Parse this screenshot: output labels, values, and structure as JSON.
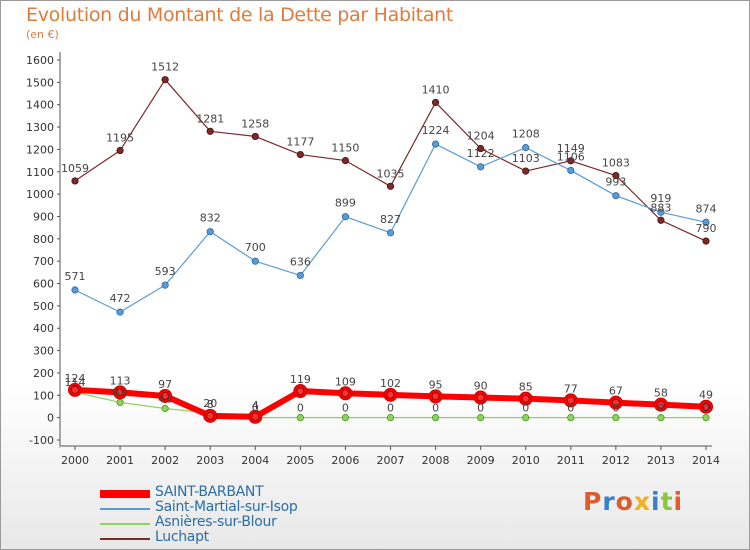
{
  "title": "Evolution du Montant de la Dette par Habitant",
  "subtitle": "(en €)",
  "logo": {
    "text": "Proxiti",
    "colors": [
      "#e05a2a",
      "#3a7fcc",
      "#e05a2a",
      "#f0b020",
      "#3a7fcc",
      "#8cc63f",
      "#e05a2a"
    ]
  },
  "chart_data": {
    "type": "line",
    "x": [
      2000,
      2001,
      2002,
      2003,
      2004,
      2005,
      2006,
      2007,
      2008,
      2009,
      2010,
      2011,
      2012,
      2013,
      2014
    ],
    "ylim": [
      -100,
      1600
    ],
    "yticks": [
      -100,
      0,
      100,
      200,
      300,
      400,
      500,
      600,
      700,
      800,
      900,
      1000,
      1100,
      1200,
      1300,
      1400,
      1500,
      1600
    ],
    "grid": false,
    "legend_position": "bottom",
    "series": [
      {
        "name": "SAINT-BARBANT",
        "color": "#ff0000",
        "values": [
          124,
          113,
          97,
          8,
          4,
          119,
          109,
          102,
          95,
          90,
          85,
          77,
          67,
          58,
          49
        ],
        "labels": [
          "124",
          "113",
          "97",
          "8",
          "4",
          "119",
          "109",
          "102",
          "95",
          "90",
          "85",
          "77",
          "67",
          "58",
          "49"
        ]
      },
      {
        "name": "Saint-Martial-sur-Isop",
        "color": "#5b9bd5",
        "values": [
          571,
          472,
          593,
          832,
          700,
          636,
          899,
          827,
          1224,
          1122,
          1208,
          1106,
          993,
          919,
          874
        ],
        "labels": [
          "571",
          "472",
          "593",
          "832",
          "700",
          "636",
          "899",
          "827",
          "1224",
          "1122",
          "1208",
          "1106",
          "993",
          "919",
          "874"
        ]
      },
      {
        "name": "Asnières-sur-Blour",
        "color": "#90d060",
        "values": [
          114,
          68,
          41,
          20,
          0,
          0,
          0,
          0,
          0,
          0,
          0,
          0,
          0,
          0,
          0
        ],
        "labels": [
          "114",
          "68",
          "41",
          "20",
          "0",
          "0",
          "0",
          "0",
          "0",
          "0",
          "0",
          "0",
          "0",
          "0",
          "0"
        ]
      },
      {
        "name": "Luchapt",
        "color": "#7a2a2a",
        "values": [
          1059,
          1195,
          1512,
          1281,
          1258,
          1177,
          1150,
          1035,
          1410,
          1204,
          1103,
          1149,
          1083,
          883,
          790
        ],
        "labels": [
          "1059",
          "1195",
          "1512",
          "1281",
          "1258",
          "1177",
          "1150",
          "1035",
          "1410",
          "1204",
          "1103",
          "1149",
          "1083",
          "883",
          "790"
        ]
      }
    ]
  }
}
